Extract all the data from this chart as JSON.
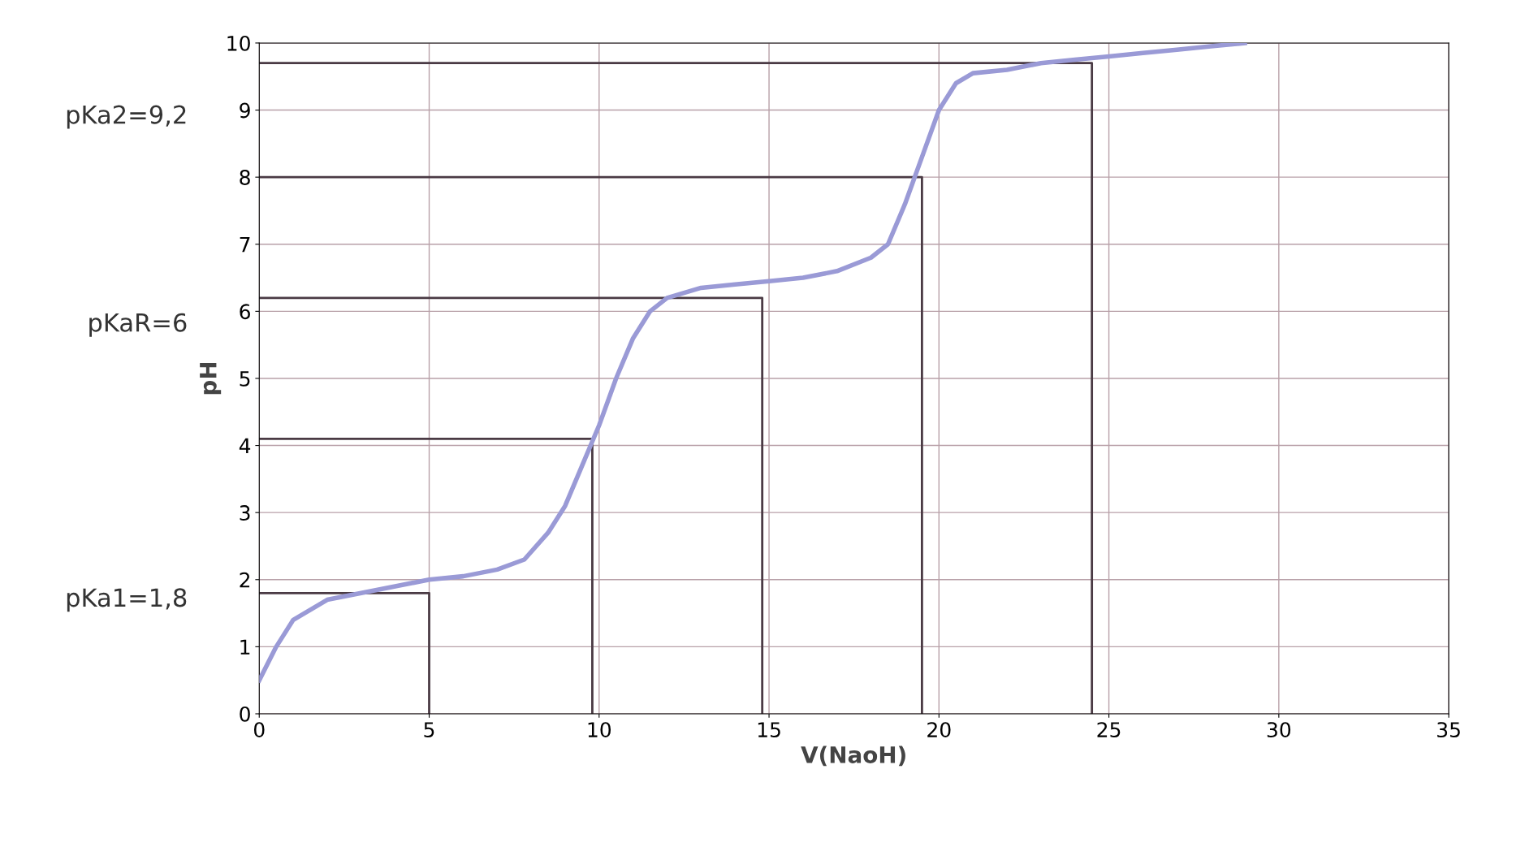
{
  "chart_data": {
    "type": "line",
    "xlabel": "V(NaoH)",
    "ylabel": "pH",
    "xlim": [
      0,
      35
    ],
    "ylim": [
      0,
      10
    ],
    "xticks": [
      0,
      5,
      10,
      15,
      20,
      25,
      30,
      35
    ],
    "yticks": [
      0,
      1,
      2,
      3,
      4,
      5,
      6,
      7,
      8,
      9,
      10
    ],
    "grid": true,
    "marker": "none",
    "line_style": "solid",
    "series": [
      {
        "color": "#9a9ad6",
        "x": [
          0,
          0.5,
          1,
          2,
          3,
          4,
          5,
          6,
          7,
          7.8,
          8.5,
          9,
          9.5,
          10,
          10.5,
          11,
          11.5,
          12,
          13,
          14,
          15,
          16,
          17,
          18,
          18.5,
          19,
          19.5,
          20,
          20.5,
          21,
          22,
          23,
          24,
          25,
          26,
          27,
          28,
          29
        ],
        "values": [
          0.5,
          1.0,
          1.4,
          1.7,
          1.8,
          1.9,
          2.0,
          2.05,
          2.15,
          2.3,
          2.7,
          3.1,
          3.7,
          4.3,
          5.0,
          5.6,
          6.0,
          6.2,
          6.35,
          6.4,
          6.45,
          6.5,
          6.6,
          6.8,
          7.0,
          7.6,
          8.3,
          9.0,
          9.4,
          9.55,
          9.6,
          9.7,
          9.75,
          9.8,
          9.85,
          9.9,
          9.95,
          10.0
        ]
      },
      {
        "color": "#4a3a44",
        "x": [
          0,
          5,
          5
        ],
        "values": [
          1.8,
          1.8,
          0
        ]
      },
      {
        "color": "#4a3a44",
        "x": [
          0,
          9.8,
          9.8
        ],
        "values": [
          4.1,
          4.1,
          0
        ]
      },
      {
        "color": "#4a3a44",
        "x": [
          0,
          14.8,
          14.8
        ],
        "values": [
          6.2,
          6.2,
          0
        ]
      },
      {
        "color": "#4a3a44",
        "x": [
          0,
          19.5,
          19.5
        ],
        "values": [
          8.0,
          8.0,
          0
        ]
      },
      {
        "color": "#4a3a44",
        "x": [
          0,
          24.5,
          24.5
        ],
        "values": [
          9.7,
          9.7,
          0
        ]
      }
    ],
    "annotations": [
      "pKa2=9,2",
      "pKaR=6",
      "pKa1=1,8"
    ]
  }
}
